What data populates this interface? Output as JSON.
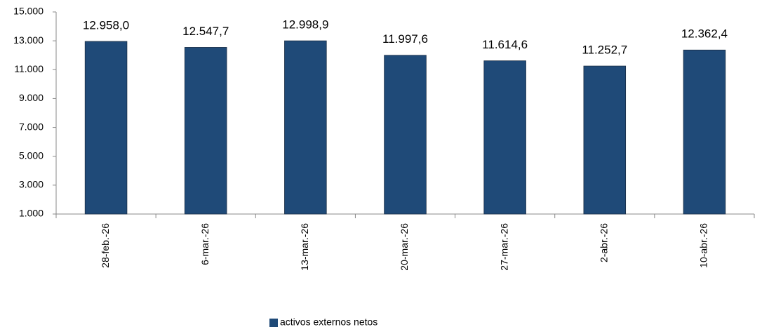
{
  "chart_data": {
    "type": "bar",
    "categories": [
      "28-feb.-26",
      "6-mar.-26",
      "13-mar.-26",
      "20-mar.-26",
      "27-mar.-26",
      "2-abr.-26",
      "10-abr.-26"
    ],
    "series": [
      {
        "name": "activos externos netos",
        "color": "#1f4a78",
        "values": [
          12958.0,
          12547.7,
          12998.9,
          11997.6,
          11614.6,
          11252.7,
          12362.4
        ],
        "value_labels": [
          "12.958,0",
          "12.547,7",
          "12.998,9",
          "11.997,6",
          "11.614,6",
          "11.252,7",
          "12.362,4"
        ]
      }
    ],
    "ylim": [
      1000,
      15000
    ],
    "yticks": [
      {
        "value": 1000,
        "label": "1.000"
      },
      {
        "value": 3000,
        "label": "3.000"
      },
      {
        "value": 5000,
        "label": "5.000"
      },
      {
        "value": 7000,
        "label": "7.000"
      },
      {
        "value": 9000,
        "label": "9.000"
      },
      {
        "value": 11000,
        "label": "11.000"
      },
      {
        "value": 13000,
        "label": "13.000"
      },
      {
        "value": 15000,
        "label": "15.000"
      }
    ],
    "legend": "bottom"
  }
}
